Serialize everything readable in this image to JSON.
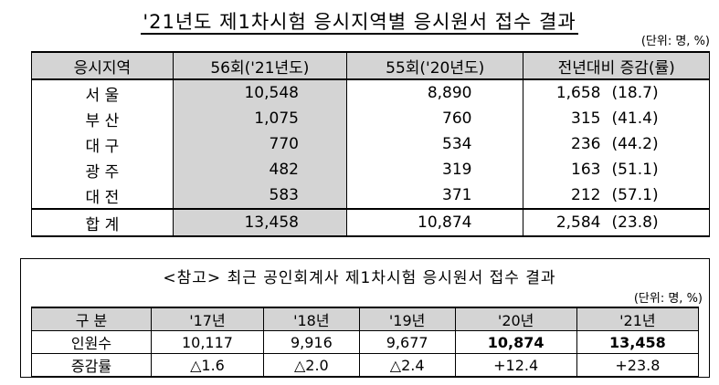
{
  "title": "'21년도 제1차시험 응시지역별 응시원서 접수 결과",
  "unit": "(단위: 명, %)",
  "table1": {
    "headers": [
      "응시지역",
      "56회('21년도)",
      "55회('20년도)",
      "전년대비 증감(률)"
    ],
    "rows": [
      {
        "region": "서    울",
        "y56": "10,548",
        "y55": "8,890",
        "diff": "1,658",
        "rate": "(18.7)"
      },
      {
        "region": "부    산",
        "y56": "1,075",
        "y55": "760",
        "diff": "315",
        "rate": "(41.4)"
      },
      {
        "region": "대    구",
        "y56": "770",
        "y55": "534",
        "diff": "236",
        "rate": "(44.2)"
      },
      {
        "region": "광    주",
        "y56": "482",
        "y55": "319",
        "diff": "163",
        "rate": "(51.1)"
      },
      {
        "region": "대    전",
        "y56": "583",
        "y55": "371",
        "diff": "212",
        "rate": "(57.1)"
      }
    ],
    "total": {
      "region": "합    계",
      "y56": "13,458",
      "y55": "10,874",
      "diff": "2,584",
      "rate": "(23.8)"
    }
  },
  "ref": {
    "title": "<참고> 최근 공인회계사 제1차시험 응시원서 접수 결과",
    "unit": "(단위: 명, %)",
    "headers": [
      "구    분",
      "'17년",
      "'18년",
      "'19년",
      "'20년",
      "'21년"
    ],
    "applicants_label": "인원수",
    "applicants": [
      "10,117",
      "9,916",
      "9,677",
      "10,874",
      "13,458"
    ],
    "change_label": "증감률",
    "change": [
      "△1.6",
      "△2.0",
      "△2.4",
      "+12.4",
      "+23.8"
    ]
  }
}
